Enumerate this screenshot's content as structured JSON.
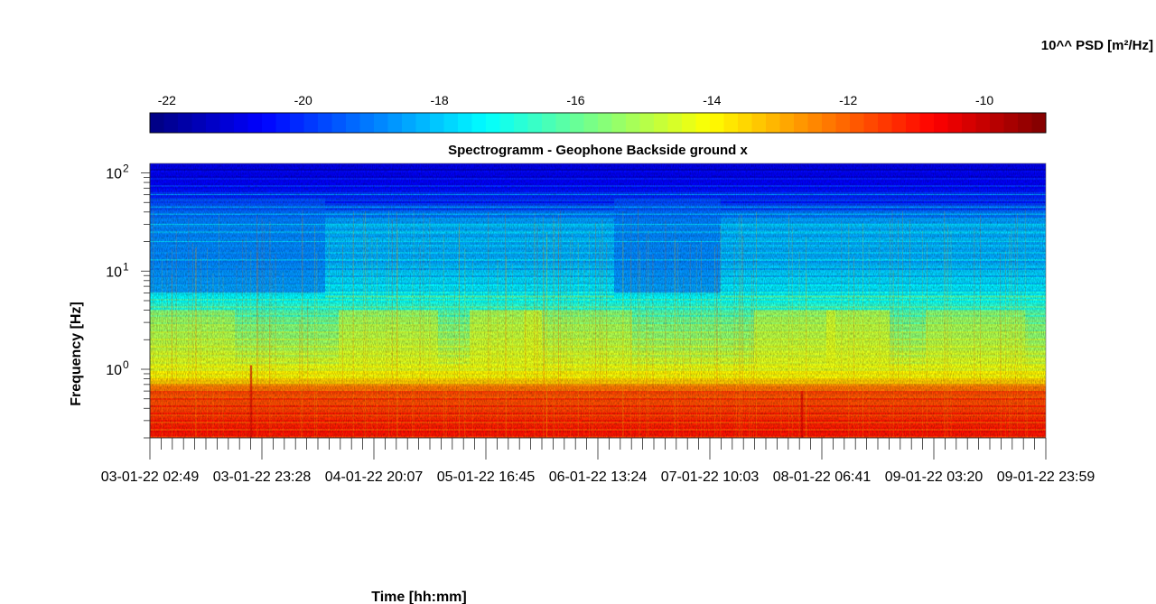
{
  "chart_data": {
    "type": "heatmap",
    "title": "Spectrogramm - Geophone Backside ground x",
    "xlabel": "Time [hh:mm]",
    "ylabel": "Frequency [Hz]",
    "yscale": "log",
    "ylim": [
      0.2,
      125
    ],
    "yticks": [
      {
        "value": 1,
        "label": "10",
        "exp": "0"
      },
      {
        "value": 10,
        "label": "10",
        "exp": "1"
      },
      {
        "value": 100,
        "label": "10",
        "exp": "2"
      }
    ],
    "xtick_labels": [
      "03-01-22 02:49",
      "03-01-22 23:28",
      "04-01-22 20:07",
      "05-01-22 16:45",
      "06-01-22 13:24",
      "07-01-22 10:03",
      "08-01-22 06:41",
      "09-01-22 03:20",
      "09-01-22 23:59"
    ],
    "colorbar": {
      "label": "10^^ PSD [m²/Hz]",
      "clim": [
        -22.25,
        -9.1
      ],
      "ticks": [
        -22,
        -20,
        -18,
        -16,
        -14,
        -12,
        -10
      ],
      "colormap": "jet",
      "location": "top"
    },
    "psd_log10_profile": [
      {
        "freq_hz": 120,
        "value": -21.0
      },
      {
        "freq_hz": 50,
        "value": -20.0
      },
      {
        "freq_hz": 30,
        "value": -18.3
      },
      {
        "freq_hz": 12,
        "value": -18.3
      },
      {
        "freq_hz": 6,
        "value": -17.5
      },
      {
        "freq_hz": 3,
        "value": -15.8
      },
      {
        "freq_hz": 1.2,
        "value": -14.6
      },
      {
        "freq_hz": 0.8,
        "value": -13.8
      },
      {
        "freq_hz": 0.6,
        "value": -11.8
      },
      {
        "freq_hz": 0.2,
        "value": -11.0
      }
    ],
    "notes": "Quieter (bluer) band above ~6 Hz roughly 02:49-20:07 on 03/04-01-22 and around 06-01-22 13:24-07-01-22 10:03; narrow line near 5.5 Hz elsewhere."
  }
}
